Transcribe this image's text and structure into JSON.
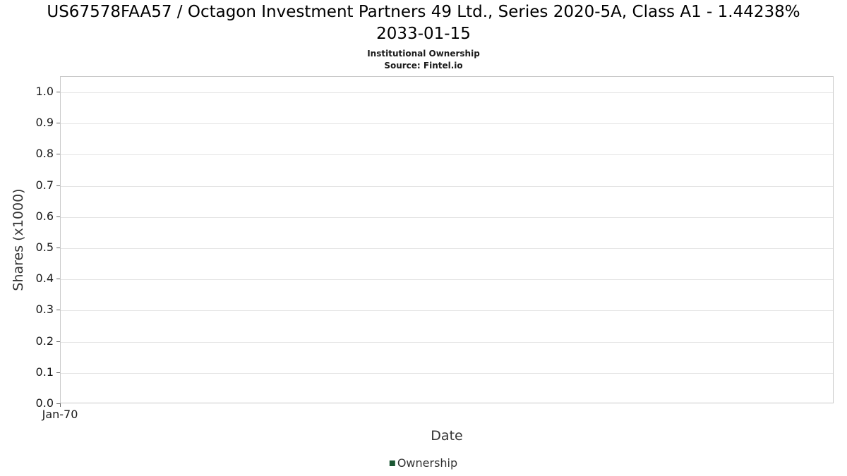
{
  "header": {
    "title": "US67578FAA57 / Octagon Investment Partners 49 Ltd., Series 2020-5A, Class A1 - 1.44238% 2033-01-15",
    "subtitle": "Institutional Ownership",
    "source": "Source: Fintel.io"
  },
  "chart_data": {
    "type": "line",
    "title": "US67578FAA57 / Octagon Investment Partners 49 Ltd., Series 2020-5A, Class A1 - 1.44238% 2033-01-15",
    "subtitle": "Institutional Ownership",
    "source": "Source: Fintel.io",
    "xlabel": "Date",
    "ylabel": "Shares (x1000)",
    "ylim": [
      0.0,
      1.0
    ],
    "y_ticks": [
      1.0,
      0.9,
      0.8,
      0.7,
      0.6,
      0.5,
      0.4,
      0.3,
      0.2,
      0.1,
      0.0
    ],
    "x_ticks": [
      "Jan-70"
    ],
    "grid": true,
    "legend_position": "bottom",
    "series": [
      {
        "name": "Ownership",
        "color": "#1a5632",
        "x": [],
        "values": []
      }
    ],
    "colors": {
      "legend_green": "#1a5632",
      "gridline": "#e4e4e4",
      "axis_border": "#c9c9c9"
    }
  }
}
